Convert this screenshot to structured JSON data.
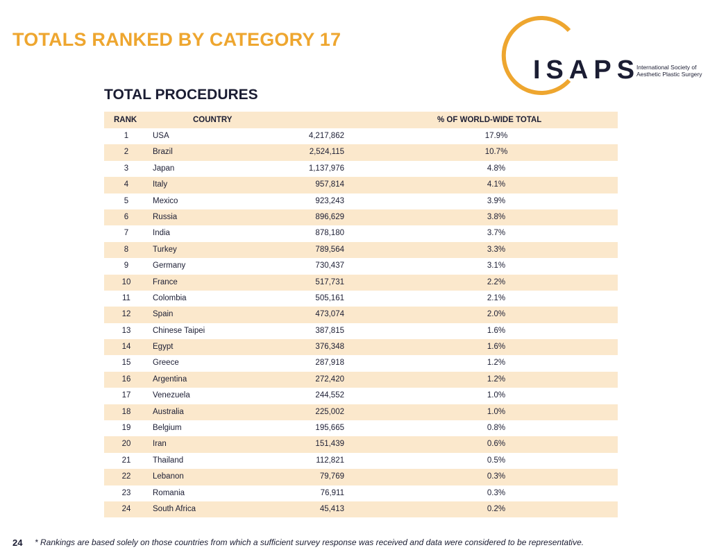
{
  "header": {
    "title": "TOTALS RANKED BY CATEGORY 17"
  },
  "logo": {
    "wordmark": "ISAPS",
    "subtitle_line1": "International Society of",
    "subtitle_line2": "Aesthetic Plastic Surgery",
    "ring_color": "#eea62f"
  },
  "section": {
    "title": "TOTAL PROCEDURES"
  },
  "table": {
    "headers": {
      "rank": "RANK",
      "country": "COUNTRY",
      "pct": "% OF WORLD-WIDE TOTAL"
    },
    "rows": [
      {
        "rank": "1",
        "country": "USA",
        "count": "4,217,862",
        "pct": "17.9%"
      },
      {
        "rank": "2",
        "country": "Brazil",
        "count": "2,524,115",
        "pct": "10.7%"
      },
      {
        "rank": "3",
        "country": "Japan",
        "count": "1,137,976",
        "pct": "4.8%"
      },
      {
        "rank": "4",
        "country": "Italy",
        "count": "957,814",
        "pct": "4.1%"
      },
      {
        "rank": "5",
        "country": "Mexico",
        "count": "923,243",
        "pct": "3.9%"
      },
      {
        "rank": "6",
        "country": "Russia",
        "count": "896,629",
        "pct": "3.8%"
      },
      {
        "rank": "7",
        "country": "India",
        "count": "878,180",
        "pct": "3.7%"
      },
      {
        "rank": "8",
        "country": "Turkey",
        "count": "789,564",
        "pct": "3.3%"
      },
      {
        "rank": "9",
        "country": "Germany",
        "count": "730,437",
        "pct": "3.1%"
      },
      {
        "rank": "10",
        "country": "France",
        "count": "517,731",
        "pct": "2.2%"
      },
      {
        "rank": "11",
        "country": "Colombia",
        "count": "505,161",
        "pct": "2.1%"
      },
      {
        "rank": "12",
        "country": "Spain",
        "count": "473,074",
        "pct": "2.0%"
      },
      {
        "rank": "13",
        "country": "Chinese Taipei",
        "count": "387,815",
        "pct": "1.6%"
      },
      {
        "rank": "14",
        "country": "Egypt",
        "count": "376,348",
        "pct": "1.6%"
      },
      {
        "rank": "15",
        "country": "Greece",
        "count": "287,918",
        "pct": "1.2%"
      },
      {
        "rank": "16",
        "country": "Argentina",
        "count": "272,420",
        "pct": "1.2%"
      },
      {
        "rank": "17",
        "country": "Venezuela",
        "count": "244,552",
        "pct": "1.0%"
      },
      {
        "rank": "18",
        "country": "Australia",
        "count": "225,002",
        "pct": "1.0%"
      },
      {
        "rank": "19",
        "country": "Belgium",
        "count": "195,665",
        "pct": "0.8%"
      },
      {
        "rank": "20",
        "country": "Iran",
        "count": "151,439",
        "pct": "0.6%"
      },
      {
        "rank": "21",
        "country": "Thailand",
        "count": "112,821",
        "pct": "0.5%"
      },
      {
        "rank": "22",
        "country": "Lebanon",
        "count": "79,769",
        "pct": "0.3%"
      },
      {
        "rank": "23",
        "country": "Romania",
        "count": "76,911",
        "pct": "0.3%"
      },
      {
        "rank": "24",
        "country": "South Africa",
        "count": "45,413",
        "pct": "0.2%"
      }
    ]
  },
  "footer": {
    "page_number": "24",
    "footnote": "* Rankings are based solely on those countries from which a sufficient survey response was received and data were considered to be representative."
  },
  "colors": {
    "accent": "#eea62f",
    "row_stripe": "#fbe8cc",
    "text": "#1b1d33"
  }
}
